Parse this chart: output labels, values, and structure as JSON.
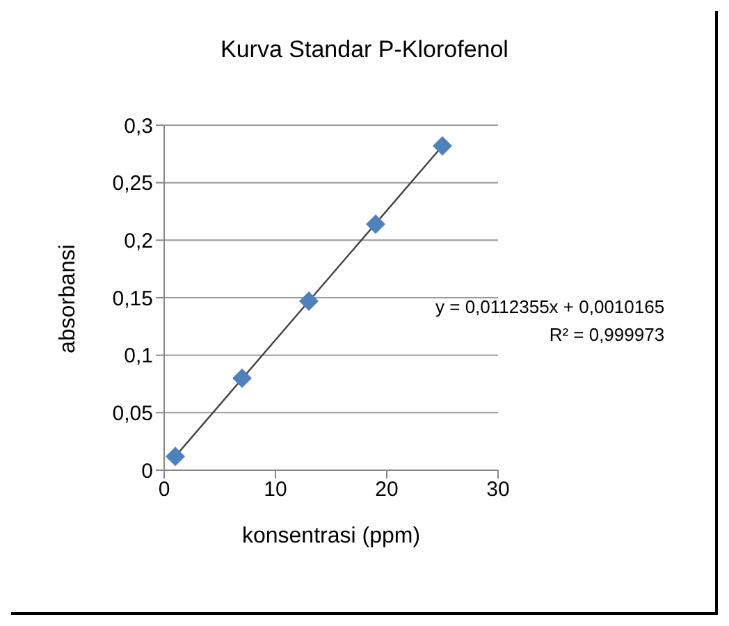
{
  "chart_data": {
    "type": "scatter",
    "title": "Kurva Standar  P-Klorofenol",
    "xlabel": "konsentrasi (ppm)",
    "ylabel": "absorbansi",
    "xlim": [
      0,
      30
    ],
    "xticks": [
      0,
      10,
      20,
      30
    ],
    "ylim": [
      0,
      0.3
    ],
    "yticks": [
      {
        "value": 0,
        "label": "0"
      },
      {
        "value": 0.05,
        "label": "0,05"
      },
      {
        "value": 0.1,
        "label": "0,1"
      },
      {
        "value": 0.15,
        "label": "0,15"
      },
      {
        "value": 0.2,
        "label": "0,2"
      },
      {
        "value": 0.25,
        "label": "0,25"
      },
      {
        "value": 0.3,
        "label": "0,3"
      }
    ],
    "grid": "y",
    "legend": false,
    "marker": "diamond",
    "series": [
      {
        "color": "#4f81bd",
        "x": [
          1,
          7,
          13,
          19,
          25
        ],
        "values": [
          0.012,
          0.08,
          0.147,
          0.214,
          0.282
        ]
      },
      {
        "type": "line",
        "color": "#404040",
        "x": [
          1,
          25
        ],
        "values": [
          0.012,
          0.282
        ],
        "marker": "none",
        "line_style": "solid"
      }
    ],
    "annotations": [
      "y = 0,0112355x + 0,0010165",
      "R² = 0,999973"
    ]
  }
}
